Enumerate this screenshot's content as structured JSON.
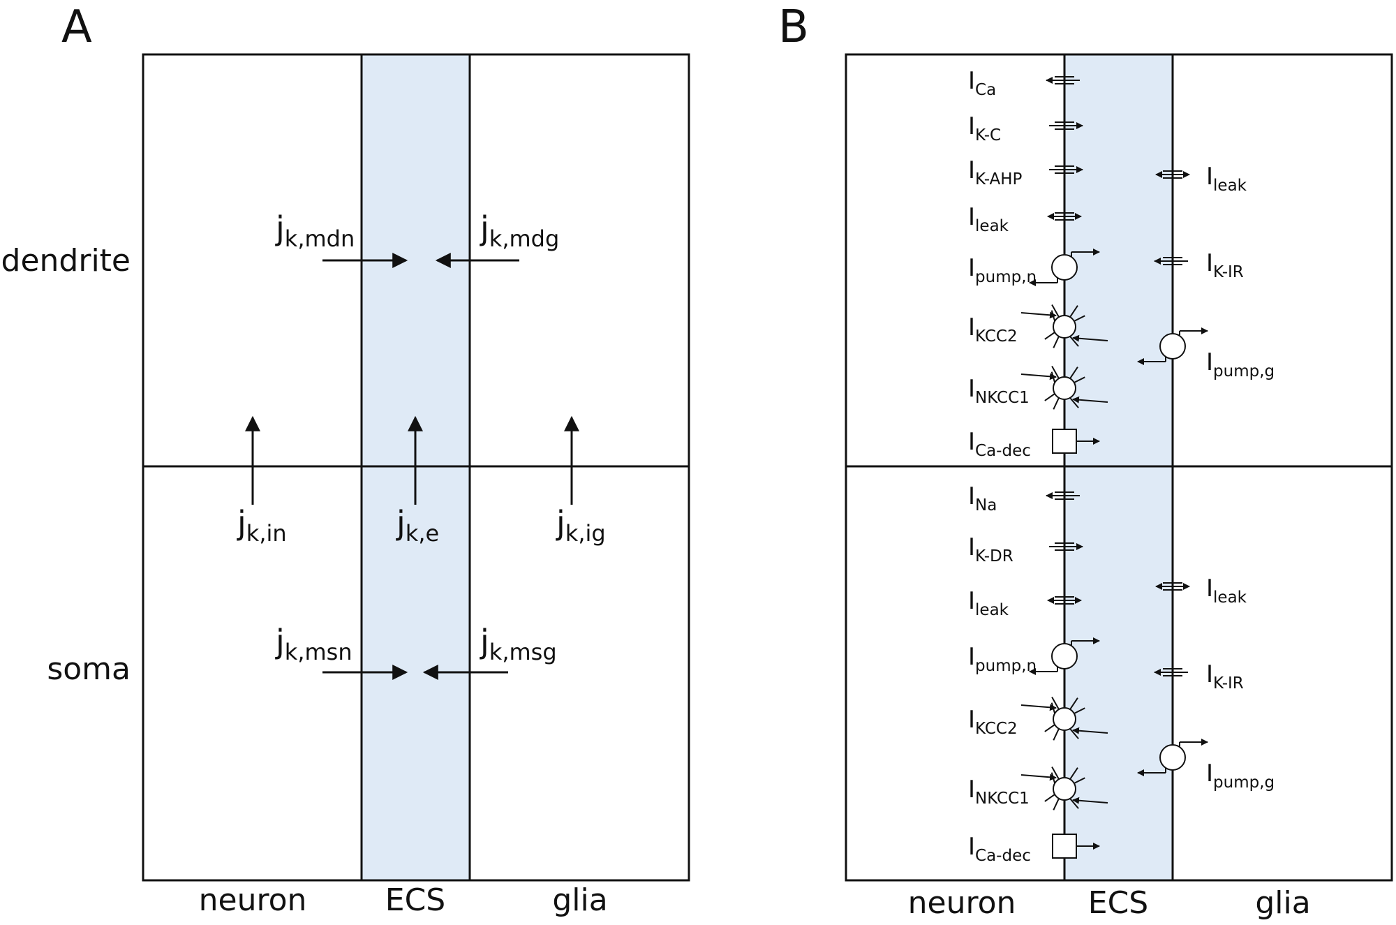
{
  "colors": {
    "ecs_fill": "#dfeaf6",
    "line": "#111111",
    "background": "#ffffff"
  },
  "panel_a": {
    "letter": "A",
    "row_labels": {
      "top": "dendrite",
      "bottom": "soma"
    },
    "col_labels": {
      "left": "neuron",
      "mid": "ECS",
      "right": "glia"
    },
    "fluxes": [
      {
        "id": "mdn",
        "main": "j",
        "sub": "k,mdn"
      },
      {
        "id": "mdg",
        "main": "j",
        "sub": "k,mdg"
      },
      {
        "id": "in",
        "main": "j",
        "sub": "k,in"
      },
      {
        "id": "e",
        "main": "j",
        "sub": "k,e"
      },
      {
        "id": "ig",
        "main": "j",
        "sub": "k,ig"
      },
      {
        "id": "msn",
        "main": "j",
        "sub": "k,msn"
      },
      {
        "id": "msg",
        "main": "j",
        "sub": "k,msg"
      }
    ]
  },
  "panel_b": {
    "letter": "B",
    "col_labels": {
      "left": "neuron",
      "mid": "ECS",
      "right": "glia"
    },
    "dendrite_neuron": [
      {
        "main": "I",
        "sub": "Ca",
        "icon": "channel",
        "dir": "in"
      },
      {
        "main": "I",
        "sub": "K-C",
        "icon": "channel",
        "dir": "out"
      },
      {
        "main": "I",
        "sub": "K-AHP",
        "icon": "channel",
        "dir": "out"
      },
      {
        "main": "I",
        "sub": "leak",
        "icon": "channel",
        "dir": "both"
      },
      {
        "main": "I",
        "sub": "pump,n",
        "icon": "pump"
      },
      {
        "main": "I",
        "sub": "KCC2",
        "icon": "cotransporter"
      },
      {
        "main": "I",
        "sub": "NKCC1",
        "icon": "cotransporter"
      },
      {
        "main": "I",
        "sub": "Ca-dec",
        "icon": "decay"
      }
    ],
    "dendrite_glia": [
      {
        "main": "I",
        "sub": "leak",
        "icon": "channel",
        "dir": "both"
      },
      {
        "main": "I",
        "sub": "K-IR",
        "icon": "channel",
        "dir": "in"
      },
      {
        "main": "I",
        "sub": "pump,g",
        "icon": "pump"
      }
    ],
    "soma_neuron": [
      {
        "main": "I",
        "sub": "Na",
        "icon": "channel",
        "dir": "in"
      },
      {
        "main": "I",
        "sub": "K-DR",
        "icon": "channel",
        "dir": "out"
      },
      {
        "main": "I",
        "sub": "leak",
        "icon": "channel",
        "dir": "both"
      },
      {
        "main": "I",
        "sub": "pump,n",
        "icon": "pump"
      },
      {
        "main": "I",
        "sub": "KCC2",
        "icon": "cotransporter"
      },
      {
        "main": "I",
        "sub": "NKCC1",
        "icon": "cotransporter"
      },
      {
        "main": "I",
        "sub": "Ca-dec",
        "icon": "decay"
      }
    ],
    "soma_glia": [
      {
        "main": "I",
        "sub": "leak",
        "icon": "channel",
        "dir": "both"
      },
      {
        "main": "I",
        "sub": "K-IR",
        "icon": "channel",
        "dir": "in"
      },
      {
        "main": "I",
        "sub": "pump,g",
        "icon": "pump"
      }
    ]
  }
}
